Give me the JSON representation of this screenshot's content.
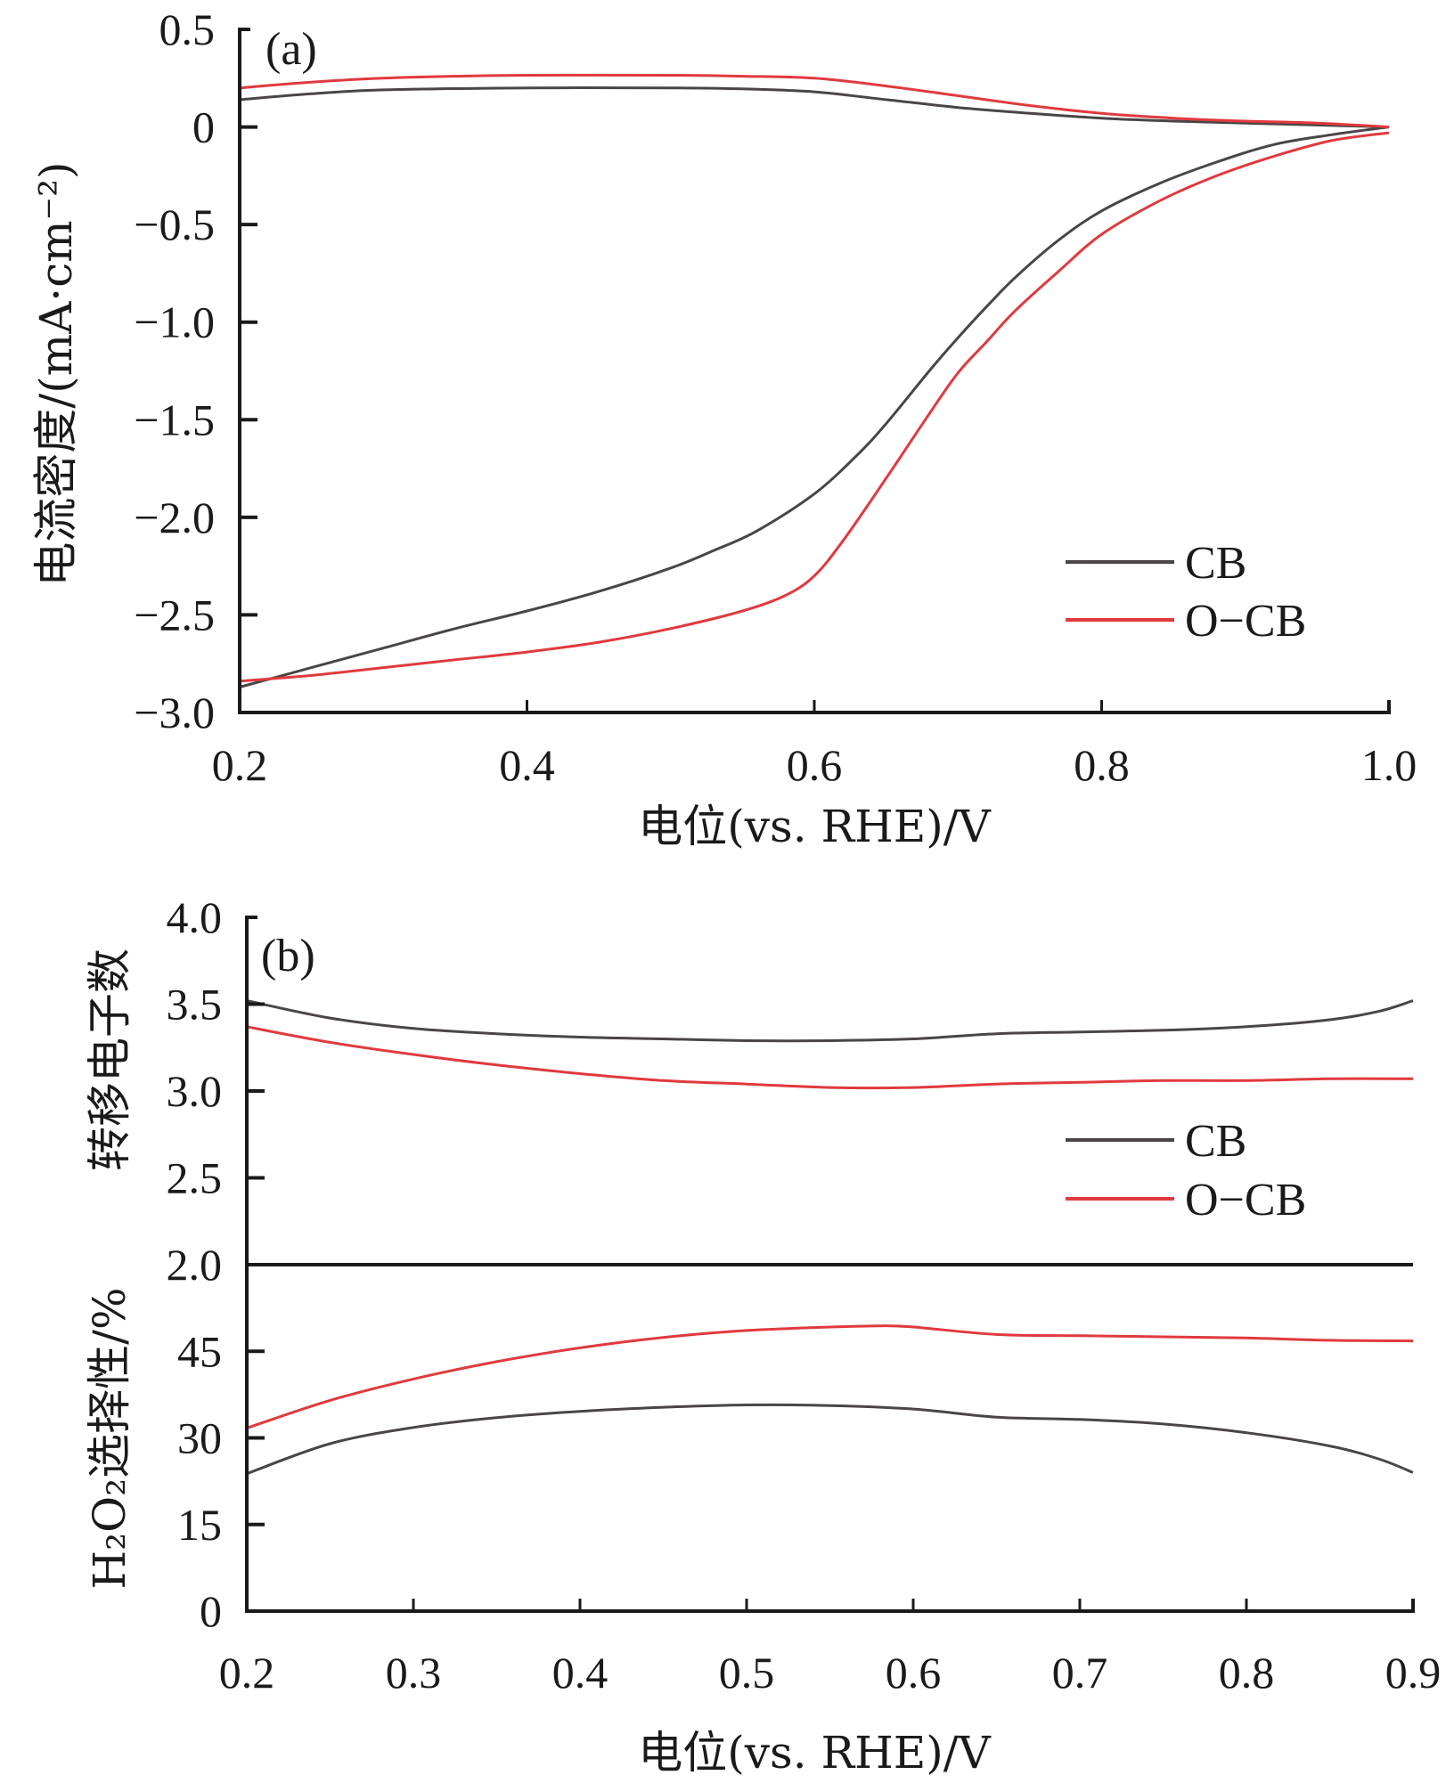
{
  "colors": {
    "cb": "#4a4546",
    "ocb": "#e03a3e",
    "axis": "#1a1a1a"
  },
  "chart_data": [
    {
      "type": "line",
      "panel_label": "(a)",
      "xlabel": "电位(vs. RHE)/V",
      "ylabel": "电流密度/(mA·cm⁻²)",
      "xlim": [
        0.2,
        1.0
      ],
      "ylim": [
        -3.0,
        0.5
      ],
      "xticks": [
        "0.2",
        "0.4",
        "0.6",
        "0.8",
        "1.0"
      ],
      "yticks": [
        "0.5",
        "0",
        "−0.5",
        "−1.0",
        "−1.5",
        "−2.0",
        "−2.5",
        "−3.0"
      ],
      "legend": {
        "position": "lower-right",
        "entries": [
          "CB",
          "O−CB"
        ]
      },
      "series": [
        {
          "name": "CB",
          "branch": "disk",
          "x": [
            0.2,
            0.25,
            0.3,
            0.35,
            0.4,
            0.45,
            0.5,
            0.53,
            0.56,
            0.6,
            0.63,
            0.65,
            0.68,
            0.7,
            0.72,
            0.74,
            0.77,
            0.8,
            0.84,
            0.88,
            0.92,
            0.96,
            1.0
          ],
          "y": [
            -2.87,
            -2.77,
            -2.67,
            -2.57,
            -2.48,
            -2.38,
            -2.26,
            -2.17,
            -2.07,
            -1.88,
            -1.68,
            -1.52,
            -1.25,
            -1.08,
            -0.92,
            -0.77,
            -0.58,
            -0.43,
            -0.29,
            -0.18,
            -0.09,
            -0.04,
            0.0
          ]
        },
        {
          "name": "O−CB",
          "branch": "disk",
          "x": [
            0.2,
            0.25,
            0.3,
            0.35,
            0.4,
            0.45,
            0.5,
            0.55,
            0.58,
            0.6,
            0.62,
            0.65,
            0.68,
            0.7,
            0.72,
            0.74,
            0.77,
            0.8,
            0.84,
            0.88,
            0.92,
            0.96,
            1.0
          ],
          "y": [
            -2.84,
            -2.81,
            -2.77,
            -2.73,
            -2.69,
            -2.64,
            -2.57,
            -2.48,
            -2.4,
            -2.3,
            -2.12,
            -1.8,
            -1.47,
            -1.26,
            -1.1,
            -0.94,
            -0.74,
            -0.55,
            -0.38,
            -0.25,
            -0.15,
            -0.07,
            -0.03
          ]
        },
        {
          "name": "CB",
          "branch": "ring",
          "x": [
            0.2,
            0.25,
            0.3,
            0.4,
            0.5,
            0.55,
            0.6,
            0.65,
            0.7,
            0.75,
            0.8,
            0.85,
            0.9,
            0.95,
            1.0
          ],
          "y": [
            0.14,
            0.17,
            0.19,
            0.2,
            0.2,
            0.195,
            0.18,
            0.14,
            0.1,
            0.07,
            0.045,
            0.03,
            0.02,
            0.01,
            0.0
          ]
        },
        {
          "name": "O−CB",
          "branch": "ring",
          "x": [
            0.2,
            0.25,
            0.3,
            0.35,
            0.4,
            0.5,
            0.55,
            0.6,
            0.65,
            0.7,
            0.75,
            0.8,
            0.85,
            0.9,
            0.95,
            1.0
          ],
          "y": [
            0.2,
            0.23,
            0.25,
            0.26,
            0.265,
            0.265,
            0.26,
            0.25,
            0.21,
            0.16,
            0.11,
            0.07,
            0.045,
            0.03,
            0.02,
            0.0
          ]
        }
      ]
    },
    {
      "type": "line",
      "panel_label": "(b)",
      "xlabel": "电位(vs. RHE)/V",
      "xlim": [
        0.2,
        0.9
      ],
      "xticks": [
        "0.2",
        "0.3",
        "0.4",
        "0.5",
        "0.6",
        "0.7",
        "0.8",
        "0.9"
      ],
      "legend": {
        "position": "right",
        "entries": [
          "CB",
          "O−CB"
        ]
      },
      "subplots": [
        {
          "ylabel": "转移电子数",
          "ylim": [
            2.0,
            4.0
          ],
          "yticks": [
            "4.0",
            "3.5",
            "3.0",
            "2.5",
            "2.0"
          ],
          "series": [
            {
              "name": "CB",
              "x": [
                0.2,
                0.25,
                0.3,
                0.35,
                0.4,
                0.45,
                0.5,
                0.55,
                0.6,
                0.65,
                0.7,
                0.75,
                0.8,
                0.85,
                0.88,
                0.9
              ],
              "y": [
                3.52,
                3.42,
                3.36,
                3.33,
                3.31,
                3.3,
                3.29,
                3.29,
                3.3,
                3.33,
                3.34,
                3.35,
                3.37,
                3.41,
                3.46,
                3.52
              ]
            },
            {
              "name": "O−CB",
              "x": [
                0.2,
                0.25,
                0.3,
                0.35,
                0.4,
                0.45,
                0.5,
                0.55,
                0.6,
                0.65,
                0.7,
                0.75,
                0.8,
                0.85,
                0.9
              ],
              "y": [
                3.37,
                3.28,
                3.21,
                3.15,
                3.1,
                3.06,
                3.04,
                3.02,
                3.02,
                3.04,
                3.05,
                3.06,
                3.06,
                3.07,
                3.07
              ]
            }
          ]
        },
        {
          "ylabel": "H₂O₂选择性/%",
          "ylim": [
            0,
            60
          ],
          "yticks": [
            "45",
            "30",
            "15",
            "0"
          ],
          "series": [
            {
              "name": "CB",
              "x": [
                0.2,
                0.25,
                0.3,
                0.35,
                0.4,
                0.45,
                0.5,
                0.55,
                0.6,
                0.65,
                0.7,
                0.75,
                0.8,
                0.85,
                0.88,
                0.9
              ],
              "y": [
                23.8,
                29.0,
                31.8,
                33.5,
                34.6,
                35.3,
                35.7,
                35.6,
                35.0,
                33.6,
                33.2,
                32.4,
                30.9,
                28.6,
                26.3,
                24.0
              ]
            },
            {
              "name": "O−CB",
              "x": [
                0.2,
                0.25,
                0.3,
                0.35,
                0.4,
                0.45,
                0.5,
                0.55,
                0.58,
                0.6,
                0.65,
                0.7,
                0.75,
                0.8,
                0.85,
                0.9
              ],
              "y": [
                31.7,
                36.5,
                40.2,
                43.2,
                45.6,
                47.4,
                48.6,
                49.2,
                49.4,
                49.2,
                47.9,
                47.7,
                47.5,
                47.3,
                46.9,
                46.8
              ]
            }
          ]
        }
      ]
    }
  ]
}
